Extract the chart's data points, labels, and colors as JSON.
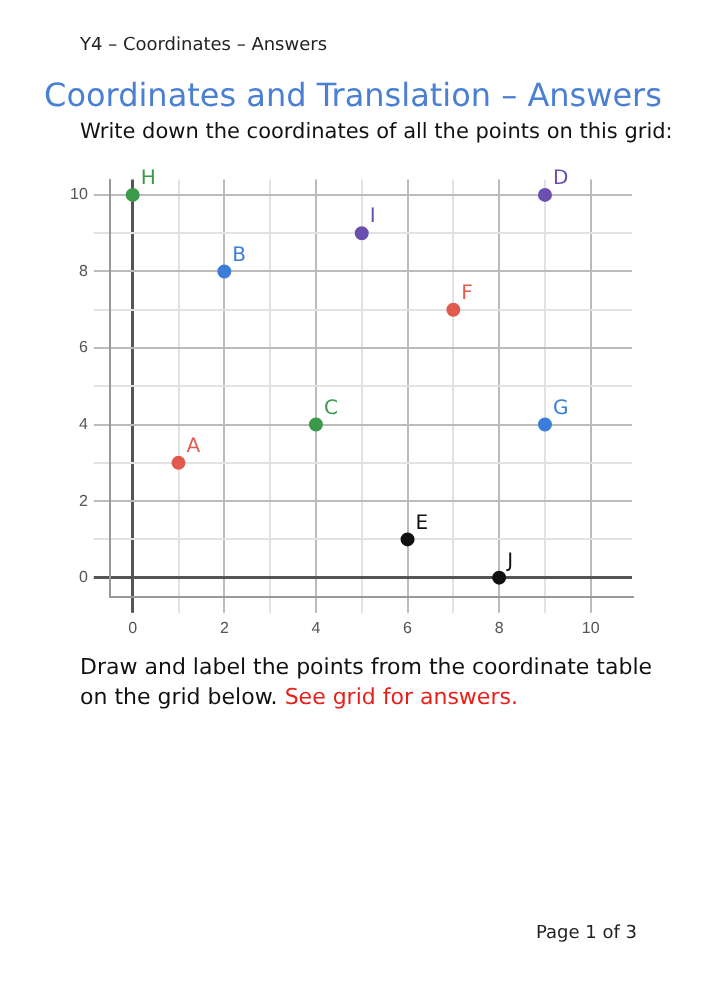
{
  "chart_data": {
    "type": "scatter",
    "title": "Coordinates and Translation – Answers",
    "subtitle": "Write down the coordinates of all the points on this grid:",
    "annotations": [
      "Y4 – Coordinates – Answers",
      "Draw and label the points from the coordinate table on the grid below.",
      "See grid for answers.",
      "Page 1 of 3"
    ],
    "series": [
      {
        "name": "A",
        "color": "#e05a4f",
        "x": [
          1
        ],
        "values": [
          3
        ]
      },
      {
        "name": "B",
        "color": "#3b7dd8",
        "x": [
          2
        ],
        "values": [
          8
        ]
      },
      {
        "name": "C",
        "color": "#3a9a4a",
        "x": [
          4
        ],
        "values": [
          4
        ]
      },
      {
        "name": "D",
        "color": "#6a4fb0",
        "x": [
          9
        ],
        "values": [
          10
        ]
      },
      {
        "name": "E",
        "color": "#111111",
        "x": [
          6
        ],
        "values": [
          1
        ]
      },
      {
        "name": "F",
        "color": "#e05a4f",
        "x": [
          7
        ],
        "values": [
          7
        ]
      },
      {
        "name": "G",
        "color": "#3b7dd8",
        "x": [
          9
        ],
        "values": [
          4
        ]
      },
      {
        "name": "H",
        "color": "#3a9a4a",
        "x": [
          0
        ],
        "values": [
          10
        ]
      },
      {
        "name": "I",
        "color": "#6a4fb0",
        "x": [
          5
        ],
        "values": [
          9
        ]
      },
      {
        "name": "J",
        "color": "#111111",
        "x": [
          8
        ],
        "values": [
          0
        ]
      }
    ],
    "xlim": [
      -0.5,
      10.9
    ],
    "ylim": [
      -0.5,
      10.4
    ],
    "xticks": [
      0,
      {
        "value": 1,
        "label": null
      },
      2,
      {
        "value": 3,
        "label": null
      },
      4,
      {
        "value": 5,
        "label": null
      },
      6,
      {
        "value": 7,
        "label": null
      },
      8,
      {
        "value": 9,
        "label": null
      },
      10
    ],
    "yticks": [
      0,
      {
        "value": 1,
        "label": null
      },
      2,
      {
        "value": 3,
        "label": null
      },
      4,
      {
        "value": 5,
        "label": null
      },
      6,
      {
        "value": 7,
        "label": null
      },
      8,
      {
        "value": 9,
        "label": null
      },
      10
    ],
    "grid": true,
    "legend": false,
    "marker": "circle"
  }
}
